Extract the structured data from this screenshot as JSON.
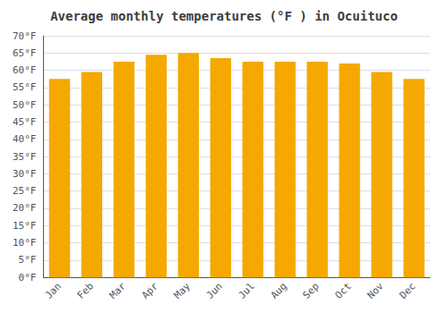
{
  "chart_data": {
    "type": "bar",
    "title": "Average monthly temperatures (°F ) in Ocuituco",
    "categories": [
      "Jan",
      "Feb",
      "Mar",
      "Apr",
      "May",
      "Jun",
      "Jul",
      "Aug",
      "Sep",
      "Oct",
      "Nov",
      "Dec"
    ],
    "values": [
      57.5,
      59.5,
      62.5,
      64.5,
      65.0,
      63.5,
      62.5,
      62.5,
      62.5,
      62.0,
      59.5,
      57.5
    ],
    "color": "#F5A800",
    "ylim": [
      0,
      70
    ],
    "yticks": [
      {
        "value": 0,
        "label": "0°F"
      },
      {
        "value": 5,
        "label": "5°F"
      },
      {
        "value": 10,
        "label": "10°F"
      },
      {
        "value": 15,
        "label": "15°F"
      },
      {
        "value": 20,
        "label": "20°F"
      },
      {
        "value": 25,
        "label": "25°F"
      },
      {
        "value": 30,
        "label": "30°F"
      },
      {
        "value": 35,
        "label": "35°F"
      },
      {
        "value": 40,
        "label": "40°F"
      },
      {
        "value": 45,
        "label": "45°F"
      },
      {
        "value": 50,
        "label": "50°F"
      },
      {
        "value": 55,
        "label": "55°F"
      },
      {
        "value": 60,
        "label": "60°F"
      },
      {
        "value": 65,
        "label": "65°F"
      },
      {
        "value": 70,
        "label": "70°F"
      }
    ],
    "grid": true
  }
}
